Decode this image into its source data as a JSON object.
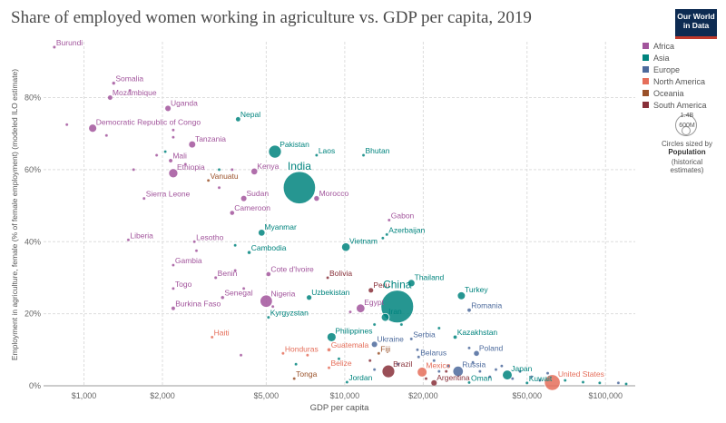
{
  "title": "Share of employed women working in agriculture vs. GDP per capita, 2019",
  "logo": {
    "line1": "Our World",
    "line2": "in Data"
  },
  "legend": [
    {
      "name": "Africa",
      "color": "#a2559c"
    },
    {
      "name": "Asia",
      "color": "#00847e"
    },
    {
      "name": "Europe",
      "color": "#4c6a9c"
    },
    {
      "name": "North America",
      "color": "#e56e5a"
    },
    {
      "name": "Oceania",
      "color": "#9a5129"
    },
    {
      "name": "South America",
      "color": "#883039"
    }
  ],
  "size_legend": {
    "max": "1.4B",
    "min": "600M",
    "note": "Circles sized by",
    "label": "Population",
    "sub": "(historical estimates)"
  },
  "chart_data": {
    "type": "scatter",
    "title": "Share of employed women working in agriculture vs. GDP per capita, 2019",
    "xlabel": "GDP per capita",
    "ylabel": "Employment in agriculture, female (% of female employment) (modeled ILO estimate)",
    "x_scale": "log",
    "xlim": [
      700,
      130000
    ],
    "ylim": [
      0,
      95
    ],
    "x_ticks": [
      1000,
      2000,
      5000,
      10000,
      20000,
      50000,
      100000
    ],
    "x_tick_labels": [
      "$1,000",
      "$2,000",
      "$5,000",
      "$10,000",
      "$20,000",
      "$50,000",
      "$100,000"
    ],
    "y_ticks": [
      0,
      20,
      40,
      60,
      80
    ],
    "y_tick_labels": [
      "0%",
      "20%",
      "40%",
      "60%",
      "80%"
    ],
    "grid": true,
    "legend_position": "right",
    "points": [
      {
        "label": "Burundi",
        "x": 770,
        "y": 94,
        "region": "Africa",
        "pop": 12
      },
      {
        "label": "Somalia",
        "x": 1300,
        "y": 84,
        "region": "Africa",
        "pop": 15
      },
      {
        "label": "Mozambique",
        "x": 1260,
        "y": 80,
        "region": "Africa",
        "pop": 30
      },
      {
        "label": "Uganda",
        "x": 2100,
        "y": 77,
        "region": "Africa",
        "pop": 44
      },
      {
        "label": "Nepal",
        "x": 3900,
        "y": 74,
        "region": "Asia",
        "pop": 29
      },
      {
        "label": "Democratic Republic of Congo",
        "x": 1080,
        "y": 71.5,
        "region": "Africa",
        "pop": 87
      },
      {
        "label": "Tanzania",
        "x": 2600,
        "y": 67,
        "region": "Africa",
        "pop": 58
      },
      {
        "label": "Pakistan",
        "x": 5400,
        "y": 65,
        "region": "Asia",
        "pop": 216
      },
      {
        "label": "Laos",
        "x": 7800,
        "y": 64,
        "region": "Asia",
        "pop": 7
      },
      {
        "label": "Bhutan",
        "x": 11800,
        "y": 64,
        "region": "Asia",
        "pop": 1
      },
      {
        "label": "Mali",
        "x": 2150,
        "y": 62.5,
        "region": "Africa",
        "pop": 20
      },
      {
        "label": "Kenya",
        "x": 4500,
        "y": 59.5,
        "region": "Africa",
        "pop": 52
      },
      {
        "label": "Ethiopia",
        "x": 2200,
        "y": 59,
        "region": "Africa",
        "pop": 112
      },
      {
        "label": "India",
        "x": 6700,
        "y": 55,
        "region": "Asia",
        "pop": 1366
      },
      {
        "label": "Vanuatu",
        "x": 3000,
        "y": 57,
        "region": "Oceania",
        "pop": 1
      },
      {
        "label": "Sudan",
        "x": 4100,
        "y": 52,
        "region": "Africa",
        "pop": 43
      },
      {
        "label": "Morocco",
        "x": 7800,
        "y": 52,
        "region": "Africa",
        "pop": 36
      },
      {
        "label": "Sierra Leone",
        "x": 1700,
        "y": 52,
        "region": "Africa",
        "pop": 8
      },
      {
        "label": "Cameroon",
        "x": 3700,
        "y": 48,
        "region": "Africa",
        "pop": 26
      },
      {
        "label": "Gabon",
        "x": 14800,
        "y": 46,
        "region": "Africa",
        "pop": 2
      },
      {
        "label": "Myanmar",
        "x": 4800,
        "y": 42.5,
        "region": "Asia",
        "pop": 54
      },
      {
        "label": "Azerbaijan",
        "x": 14500,
        "y": 42,
        "region": "Asia",
        "pop": 10
      },
      {
        "label": "Liberia",
        "x": 1480,
        "y": 40.5,
        "region": "Africa",
        "pop": 5
      },
      {
        "label": "Lesotho",
        "x": 2650,
        "y": 40,
        "region": "Africa",
        "pop": 2
      },
      {
        "label": "Vietnam",
        "x": 10100,
        "y": 38.5,
        "region": "Asia",
        "pop": 96
      },
      {
        "label": "Cambodia",
        "x": 4300,
        "y": 37,
        "region": "Asia",
        "pop": 16
      },
      {
        "label": "Gambia",
        "x": 2200,
        "y": 33.5,
        "region": "Africa",
        "pop": 2
      },
      {
        "label": "Cote d'Ivoire",
        "x": 5100,
        "y": 31,
        "region": "Africa",
        "pop": 26
      },
      {
        "label": "Bolivia",
        "x": 8600,
        "y": 30,
        "region": "South America",
        "pop": 11
      },
      {
        "label": "Benin",
        "x": 3200,
        "y": 30,
        "region": "Africa",
        "pop": 12
      },
      {
        "label": "Thailand",
        "x": 18000,
        "y": 28.5,
        "region": "Asia",
        "pop": 70
      },
      {
        "label": "Togo",
        "x": 2200,
        "y": 27,
        "region": "Africa",
        "pop": 8
      },
      {
        "label": "Peru",
        "x": 12600,
        "y": 26.5,
        "region": "South America",
        "pop": 32
      },
      {
        "label": "Turkey",
        "x": 28000,
        "y": 25,
        "region": "Asia",
        "pop": 83
      },
      {
        "label": "Senegal",
        "x": 3400,
        "y": 24.5,
        "region": "Africa",
        "pop": 16
      },
      {
        "label": "Uzbekistan",
        "x": 7300,
        "y": 24.5,
        "region": "Asia",
        "pop": 33
      },
      {
        "label": "China",
        "x": 15900,
        "y": 22,
        "region": "Asia",
        "pop": 1400
      },
      {
        "label": "Nigeria",
        "x": 5000,
        "y": 23.5,
        "region": "Africa",
        "pop": 201
      },
      {
        "label": "Egypt",
        "x": 11500,
        "y": 21.5,
        "region": "Africa",
        "pop": 100
      },
      {
        "label": "Burkina Faso",
        "x": 2200,
        "y": 21.5,
        "region": "Africa",
        "pop": 20
      },
      {
        "label": "Romania",
        "x": 30000,
        "y": 21,
        "region": "Europe",
        "pop": 19
      },
      {
        "label": "Kyrgyzstan",
        "x": 5100,
        "y": 19,
        "region": "Asia",
        "pop": 6
      },
      {
        "label": "Iran",
        "x": 14300,
        "y": 19,
        "region": "Asia",
        "pop": 83
      },
      {
        "label": "Philippines",
        "x": 8900,
        "y": 13.5,
        "region": "Asia",
        "pop": 108
      },
      {
        "label": "Haiti",
        "x": 3100,
        "y": 13.5,
        "region": "North America",
        "pop": 11
      },
      {
        "label": "Serbia",
        "x": 18000,
        "y": 13,
        "region": "Europe",
        "pop": 7
      },
      {
        "label": "Kazakhstan",
        "x": 26500,
        "y": 13.5,
        "region": "Asia",
        "pop": 18
      },
      {
        "label": "Ukraine",
        "x": 13000,
        "y": 11.5,
        "region": "Europe",
        "pop": 44
      },
      {
        "label": "Guatemala",
        "x": 8700,
        "y": 10,
        "region": "North America",
        "pop": 17
      },
      {
        "label": "Honduras",
        "x": 5800,
        "y": 9,
        "region": "North America",
        "pop": 10
      },
      {
        "label": "Poland",
        "x": 32000,
        "y": 9,
        "region": "Europe",
        "pop": 38
      },
      {
        "label": "Fiji",
        "x": 13500,
        "y": 9,
        "region": "Oceania",
        "pop": 1
      },
      {
        "label": "Belarus",
        "x": 19200,
        "y": 8,
        "region": "Europe",
        "pop": 9
      },
      {
        "label": "Belize",
        "x": 8700,
        "y": 5,
        "region": "North America",
        "pop": 1
      },
      {
        "label": "Brazil",
        "x": 14700,
        "y": 4,
        "region": "South America",
        "pop": 211
      },
      {
        "label": "Mexico",
        "x": 19800,
        "y": 3.8,
        "region": "North America",
        "pop": 127
      },
      {
        "label": "Russia",
        "x": 27200,
        "y": 4,
        "region": "Europe",
        "pop": 144
      },
      {
        "label": "Japan",
        "x": 42000,
        "y": 3,
        "region": "Asia",
        "pop": 126
      },
      {
        "label": "Tonga",
        "x": 6400,
        "y": 2,
        "region": "Oceania",
        "pop": 1
      },
      {
        "label": "Jordan",
        "x": 10200,
        "y": 1,
        "region": "Asia",
        "pop": 10
      },
      {
        "label": "Argentina",
        "x": 22000,
        "y": 0.8,
        "region": "South America",
        "pop": 45
      },
      {
        "label": "Oman",
        "x": 30000,
        "y": 0.9,
        "region": "Asia",
        "pop": 5
      },
      {
        "label": "Kuwait",
        "x": 50000,
        "y": 0.8,
        "region": "Asia",
        "pop": 4
      },
      {
        "label": "United States",
        "x": 62500,
        "y": 0.9,
        "region": "North America",
        "pop": 328
      },
      {
        "label": "",
        "x": 860,
        "y": 72.5,
        "region": "Africa",
        "pop": 5
      },
      {
        "label": "",
        "x": 1220,
        "y": 69.5,
        "region": "Africa",
        "pop": 5
      },
      {
        "label": "",
        "x": 1500,
        "y": 82,
        "region": "Africa",
        "pop": 6
      },
      {
        "label": "",
        "x": 1550,
        "y": 60,
        "region": "Africa",
        "pop": 6
      },
      {
        "label": "",
        "x": 1900,
        "y": 64,
        "region": "Africa",
        "pop": 5
      },
      {
        "label": "",
        "x": 2050,
        "y": 65,
        "region": "Asia",
        "pop": 5
      },
      {
        "label": "",
        "x": 2200,
        "y": 71,
        "region": "Africa",
        "pop": 5
      },
      {
        "label": "",
        "x": 2200,
        "y": 69,
        "region": "Africa",
        "pop": 5
      },
      {
        "label": "",
        "x": 2450,
        "y": 61.5,
        "region": "Africa",
        "pop": 5
      },
      {
        "label": "",
        "x": 3300,
        "y": 60,
        "region": "Asia",
        "pop": 5
      },
      {
        "label": "",
        "x": 3700,
        "y": 60,
        "region": "Africa",
        "pop": 5
      },
      {
        "label": "",
        "x": 3300,
        "y": 55,
        "region": "Africa",
        "pop": 5
      },
      {
        "label": "",
        "x": 3800,
        "y": 39,
        "region": "Asia",
        "pop": 5
      },
      {
        "label": "",
        "x": 2700,
        "y": 37.5,
        "region": "Africa",
        "pop": 5
      },
      {
        "label": "",
        "x": 3800,
        "y": 32,
        "region": "Africa",
        "pop": 5
      },
      {
        "label": "",
        "x": 4100,
        "y": 27,
        "region": "Africa",
        "pop": 5
      },
      {
        "label": "",
        "x": 5300,
        "y": 22,
        "region": "Africa",
        "pop": 5
      },
      {
        "label": "",
        "x": 4000,
        "y": 8.5,
        "region": "Africa",
        "pop": 5
      },
      {
        "label": "",
        "x": 6500,
        "y": 6,
        "region": "Asia",
        "pop": 5
      },
      {
        "label": "",
        "x": 9500,
        "y": 7.5,
        "region": "Asia",
        "pop": 5
      },
      {
        "label": "",
        "x": 10500,
        "y": 20.5,
        "region": "Africa",
        "pop": 5
      },
      {
        "label": "",
        "x": 13000,
        "y": 17,
        "region": "Asia",
        "pop": 5
      },
      {
        "label": "",
        "x": 16500,
        "y": 17,
        "region": "Asia",
        "pop": 5
      },
      {
        "label": "",
        "x": 23000,
        "y": 16,
        "region": "Asia",
        "pop": 5
      },
      {
        "label": "",
        "x": 14000,
        "y": 41,
        "region": "Asia",
        "pop": 5
      },
      {
        "label": "",
        "x": 13000,
        "y": 4.5,
        "region": "Europe",
        "pop": 5
      },
      {
        "label": "",
        "x": 16000,
        "y": 6,
        "region": "Europe",
        "pop": 5
      },
      {
        "label": "",
        "x": 19000,
        "y": 10,
        "region": "Europe",
        "pop": 5
      },
      {
        "label": "",
        "x": 22000,
        "y": 7,
        "region": "Europe",
        "pop": 5
      },
      {
        "label": "",
        "x": 23000,
        "y": 4,
        "region": "Europe",
        "pop": 5
      },
      {
        "label": "",
        "x": 25000,
        "y": 5.5,
        "region": "Europe",
        "pop": 5
      },
      {
        "label": "",
        "x": 30000,
        "y": 10.5,
        "region": "Europe",
        "pop": 5
      },
      {
        "label": "",
        "x": 31000,
        "y": 6.5,
        "region": "Europe",
        "pop": 5
      },
      {
        "label": "",
        "x": 33000,
        "y": 4,
        "region": "Europe",
        "pop": 5
      },
      {
        "label": "",
        "x": 36000,
        "y": 2.5,
        "region": "Europe",
        "pop": 5
      },
      {
        "label": "",
        "x": 38000,
        "y": 4.5,
        "region": "Europe",
        "pop": 5
      },
      {
        "label": "",
        "x": 40000,
        "y": 5.5,
        "region": "Europe",
        "pop": 5
      },
      {
        "label": "",
        "x": 44000,
        "y": 2,
        "region": "Europe",
        "pop": 5
      },
      {
        "label": "",
        "x": 47000,
        "y": 4,
        "region": "Europe",
        "pop": 5
      },
      {
        "label": "",
        "x": 52000,
        "y": 2.5,
        "region": "Europe",
        "pop": 5
      },
      {
        "label": "",
        "x": 56000,
        "y": 1.5,
        "region": "Europe",
        "pop": 5
      },
      {
        "label": "",
        "x": 60000,
        "y": 3.5,
        "region": "Europe",
        "pop": 5
      },
      {
        "label": "",
        "x": 70000,
        "y": 1.5,
        "region": "Asia",
        "pop": 5
      },
      {
        "label": "",
        "x": 82000,
        "y": 1,
        "region": "Asia",
        "pop": 5
      },
      {
        "label": "",
        "x": 95000,
        "y": 0.8,
        "region": "Asia",
        "pop": 5
      },
      {
        "label": "",
        "x": 112000,
        "y": 0.8,
        "region": "Europe",
        "pop": 5
      },
      {
        "label": "",
        "x": 120000,
        "y": 0.5,
        "region": "Asia",
        "pop": 5
      },
      {
        "label": "",
        "x": 7200,
        "y": 8.5,
        "region": "North America",
        "pop": 5
      },
      {
        "label": "",
        "x": 12500,
        "y": 7,
        "region": "South America",
        "pop": 5
      },
      {
        "label": "",
        "x": 20500,
        "y": 2,
        "region": "South America",
        "pop": 5
      },
      {
        "label": "",
        "x": 24500,
        "y": 4,
        "region": "South America",
        "pop": 5
      }
    ]
  }
}
